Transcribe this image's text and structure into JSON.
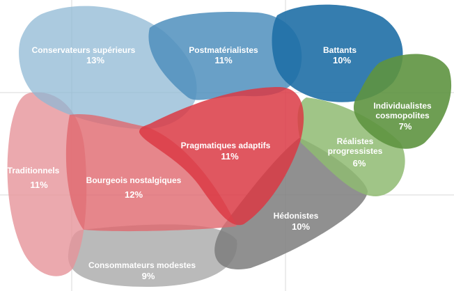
{
  "segments": [
    {
      "key": "conservateurs",
      "name": "Conservateurs supérieurs",
      "pct": "13%",
      "color": "#8fb8d4"
    },
    {
      "key": "postmaterialistes",
      "name": "Postmatérialistes",
      "pct": "11%",
      "color": "#4f8fbd"
    },
    {
      "key": "battants",
      "name": "Battants",
      "pct": "10%",
      "color": "#1f6fa6"
    },
    {
      "key": "individualistes",
      "name_lines": [
        "Individualistes",
        "cosmopolites"
      ],
      "pct": "7%",
      "color": "#5e9440"
    },
    {
      "key": "realistes",
      "name_lines": [
        "Réalistes",
        "progressistes"
      ],
      "pct": "6%",
      "color": "#8fbb72"
    },
    {
      "key": "traditionnels",
      "name": "Traditionnels",
      "pct": "11%",
      "color": "#e6949a"
    },
    {
      "key": "bourgeois",
      "name": "Bourgeois nostalgiques",
      "pct": "12%",
      "color": "#e0686e"
    },
    {
      "key": "pragmatiques",
      "name": "Pragmatiques adaptifs",
      "pct": "11%",
      "color": "#da3a44"
    },
    {
      "key": "hedonistes",
      "name": "Hédonistes",
      "pct": "10%",
      "color": "#7d7d7d"
    },
    {
      "key": "consommateurs",
      "name": "Consommateurs modestes",
      "pct": "9%",
      "color": "#b3b3b3"
    }
  ]
}
